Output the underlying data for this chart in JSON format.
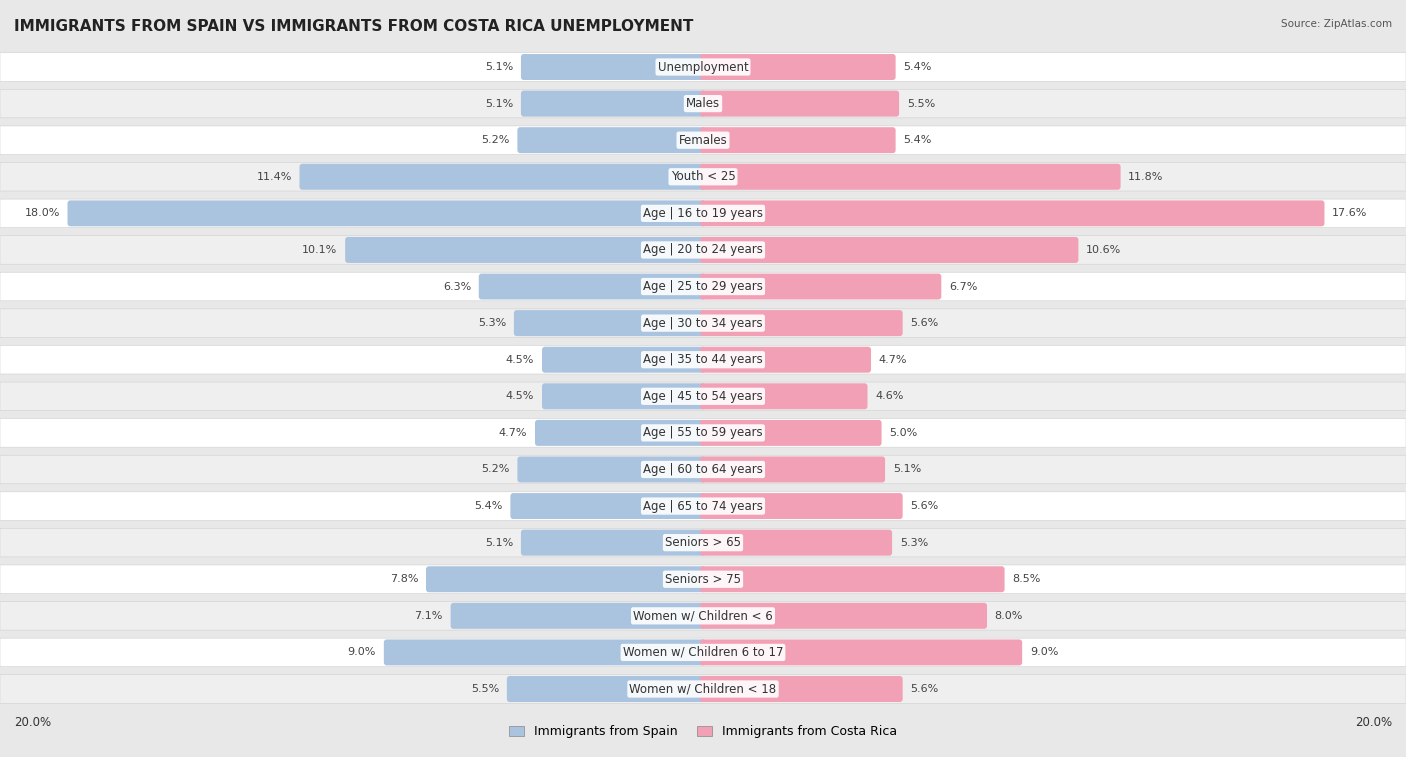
{
  "title": "IMMIGRANTS FROM SPAIN VS IMMIGRANTS FROM COSTA RICA UNEMPLOYMENT",
  "source": "Source: ZipAtlas.com",
  "categories": [
    "Unemployment",
    "Males",
    "Females",
    "Youth < 25",
    "Age | 16 to 19 years",
    "Age | 20 to 24 years",
    "Age | 25 to 29 years",
    "Age | 30 to 34 years",
    "Age | 35 to 44 years",
    "Age | 45 to 54 years",
    "Age | 55 to 59 years",
    "Age | 60 to 64 years",
    "Age | 65 to 74 years",
    "Seniors > 65",
    "Seniors > 75",
    "Women w/ Children < 6",
    "Women w/ Children 6 to 17",
    "Women w/ Children < 18"
  ],
  "spain_values": [
    5.1,
    5.1,
    5.2,
    11.4,
    18.0,
    10.1,
    6.3,
    5.3,
    4.5,
    4.5,
    4.7,
    5.2,
    5.4,
    5.1,
    7.8,
    7.1,
    9.0,
    5.5
  ],
  "costa_rica_values": [
    5.4,
    5.5,
    5.4,
    11.8,
    17.6,
    10.6,
    6.7,
    5.6,
    4.7,
    4.6,
    5.0,
    5.1,
    5.6,
    5.3,
    8.5,
    8.0,
    9.0,
    5.6
  ],
  "spain_color": "#aac4df",
  "costa_rica_color": "#f2a0b5",
  "spain_label": "Immigrants from Spain",
  "costa_rica_label": "Immigrants from Costa Rica",
  "max_val": 20.0,
  "bg_color": "#e8e8e8",
  "row_colors": [
    "#ffffff",
    "#efefef"
  ],
  "title_fontsize": 11,
  "label_fontsize": 8.5,
  "value_fontsize": 8.0
}
